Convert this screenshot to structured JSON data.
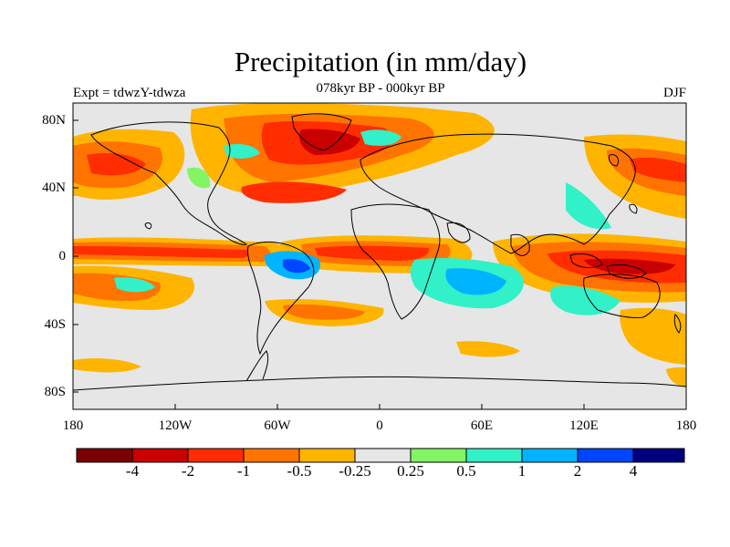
{
  "title": "Precipitation (in mm/day)",
  "subtitle": "078kyr BP - 000kyr BP",
  "left_label": "Expt = tdwzY-tdwza",
  "right_label": "DJF",
  "lat_labels": [
    "80N",
    "40N",
    "0",
    "40S",
    "80S"
  ],
  "lon_labels": [
    "180",
    "120W",
    "60W",
    "0",
    "60E",
    "120E",
    "180"
  ],
  "colorbar": {
    "colors": [
      "#7a0000",
      "#c80000",
      "#ff2d00",
      "#ff7300",
      "#ffb400",
      "#e6e6e6",
      "#82f564",
      "#32f0c8",
      "#00b4ff",
      "#0046ff",
      "#00007d"
    ],
    "labels": [
      "-4",
      "-2",
      "-1",
      "-0.5",
      "-0.25",
      "0.25",
      "0.5",
      "1",
      "2",
      "4"
    ]
  },
  "colors": {
    "background": "#e6e6e6",
    "coast": "#000000"
  }
}
